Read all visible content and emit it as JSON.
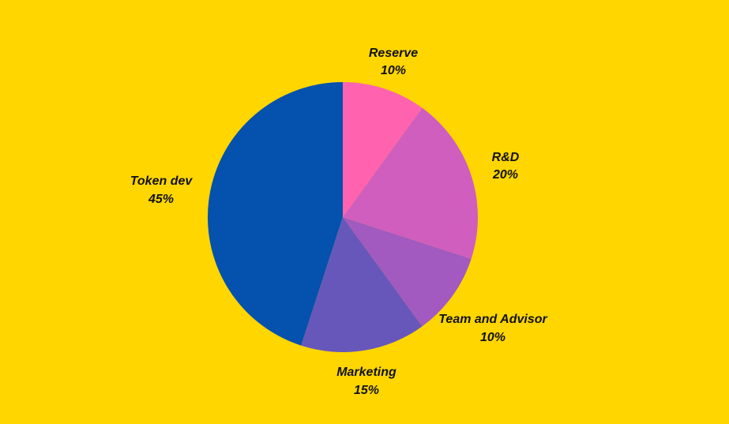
{
  "chart_data": {
    "type": "pie",
    "start": "top",
    "direction": "clockwise",
    "slices": [
      {
        "label": "Reserve",
        "value": 10,
        "pct_text": "10%",
        "color": "#FF63B0"
      },
      {
        "label": "R&D",
        "value": 20,
        "pct_text": "20%",
        "color": "#D05EBE"
      },
      {
        "label": "Team and Advisor",
        "value": 10,
        "pct_text": "10%",
        "color": "#A259C0"
      },
      {
        "label": "Marketing",
        "value": 15,
        "pct_text": "15%",
        "color": "#6857BB"
      },
      {
        "label": "Token dev",
        "value": 45,
        "pct_text": "45%",
        "color": "#0451AE"
      }
    ],
    "background": "#FFD600"
  }
}
